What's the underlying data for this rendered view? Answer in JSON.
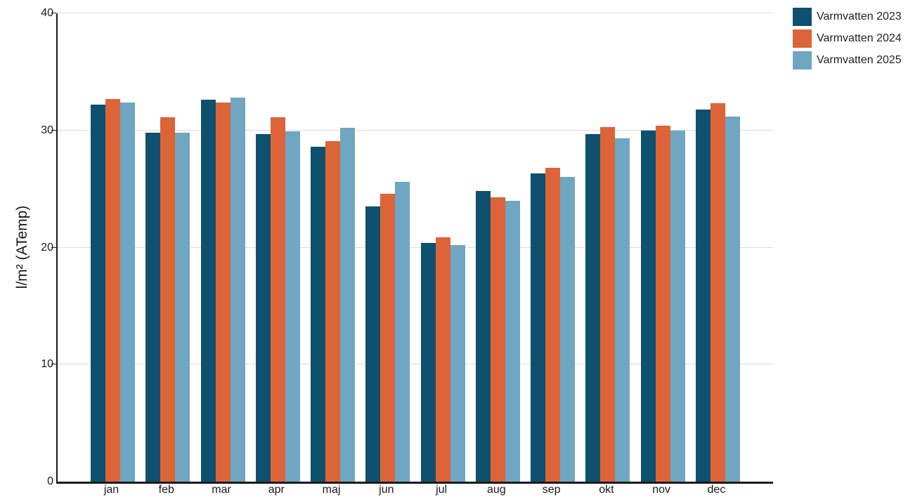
{
  "chart_data": {
    "type": "bar",
    "title": "",
    "xlabel": "",
    "ylabel": "l/m² (ATemp)",
    "ylim": [
      0,
      40
    ],
    "yticks": [
      0,
      10,
      20,
      30,
      40
    ],
    "grid": true,
    "legend_position": "top-right",
    "categories": [
      "jan",
      "feb",
      "mar",
      "apr",
      "maj",
      "jun",
      "jul",
      "aug",
      "sep",
      "okt",
      "nov",
      "dec"
    ],
    "series": [
      {
        "name": "Varmvatten 2023",
        "color": "#0f506e",
        "values": [
          32.2,
          29.8,
          32.6,
          29.7,
          28.6,
          23.5,
          20.4,
          24.8,
          26.3,
          29.7,
          30.0,
          31.8
        ]
      },
      {
        "name": "Varmvatten 2024",
        "color": "#dd6438",
        "values": [
          32.7,
          31.1,
          32.4,
          31.1,
          29.1,
          24.6,
          20.9,
          24.3,
          26.8,
          30.3,
          30.4,
          32.3
        ]
      },
      {
        "name": "Varmvatten 2025",
        "color": "#6fa6c2",
        "values": [
          32.4,
          29.8,
          32.8,
          29.9,
          30.2,
          25.6,
          20.2,
          24.0,
          26.0,
          29.3,
          30.0,
          31.2
        ]
      }
    ]
  },
  "colors": {
    "gridline": "#dcdcdc",
    "axis": "#1a1a1a",
    "text": "#1a1a1a"
  }
}
